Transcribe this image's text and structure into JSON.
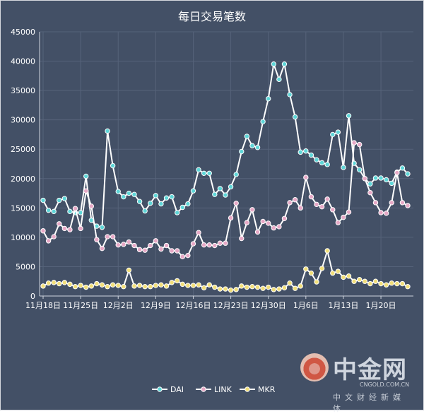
{
  "watermark": {
    "brand": "中金网",
    "url": "CNGOLD.COM.CN",
    "tagline": "中文财经新媒体"
  },
  "chart_data": {
    "type": "line",
    "title": "每日交易笔数",
    "xlabel": "",
    "ylabel": "",
    "ylim": [
      0,
      45000
    ],
    "y_ticks": [
      0,
      5000,
      10000,
      15000,
      20000,
      25000,
      30000,
      35000,
      40000,
      45000
    ],
    "x_tick_labels": [
      "11月18日",
      "11月25日",
      "12月2日",
      "12月9日",
      "12月16日",
      "12月23日",
      "12月30日",
      "1月6日",
      "1月13日",
      "1月20日"
    ],
    "x_tick_index": [
      0,
      7,
      14,
      21,
      28,
      35,
      42,
      49,
      56,
      63
    ],
    "grid": true,
    "legend_position": "bottom",
    "series": [
      {
        "name": "DAI",
        "color": "#5fd6d8",
        "values": [
          16300,
          14600,
          14400,
          16300,
          16600,
          14400,
          14200,
          14200,
          20400,
          12900,
          11900,
          11700,
          28100,
          22200,
          17800,
          16900,
          17500,
          17300,
          16100,
          14500,
          15800,
          17100,
          15700,
          16700,
          16900,
          14200,
          15100,
          15700,
          17900,
          21500,
          20900,
          20900,
          17300,
          18300,
          17200,
          18600,
          20700,
          24600,
          27200,
          25600,
          25300,
          29700,
          33600,
          39500,
          36900,
          39500,
          34300,
          30500,
          24500,
          24700,
          24000,
          23200,
          22700,
          22400,
          27500,
          27900,
          21900,
          30700,
          22600,
          21500,
          20000,
          19100,
          20100,
          20100,
          19800,
          19200,
          21100,
          21800,
          20800
        ]
      },
      {
        "name": "LINK",
        "color": "#e7a9c7",
        "values": [
          11100,
          9400,
          10100,
          12300,
          11500,
          11300,
          14900,
          11500,
          17900,
          15300,
          9600,
          8100,
          10100,
          10100,
          8700,
          8800,
          9200,
          8600,
          7900,
          7800,
          8600,
          9400,
          8000,
          8600,
          7700,
          7700,
          6700,
          6900,
          8900,
          10800,
          8700,
          8700,
          8600,
          9000,
          9000,
          13300,
          15800,
          9800,
          12500,
          14700,
          10900,
          12700,
          12400,
          11600,
          11800,
          13200,
          15900,
          16400,
          15000,
          20200,
          16900,
          15600,
          15200,
          16500,
          14700,
          12500,
          13400,
          14300,
          26100,
          25800,
          20000,
          17600,
          15900,
          14200,
          14100,
          15900,
          21000,
          15900,
          15400
        ]
      },
      {
        "name": "MKR",
        "color": "#f2df7a",
        "values": [
          1700,
          2200,
          2300,
          2100,
          2300,
          2000,
          1600,
          1800,
          1500,
          1700,
          2100,
          1900,
          1600,
          1900,
          1800,
          1600,
          4400,
          1700,
          1800,
          1600,
          1600,
          1800,
          1900,
          1700,
          2300,
          2600,
          2000,
          1800,
          1800,
          1900,
          1400,
          1900,
          1500,
          1200,
          1200,
          1000,
          1100,
          1700,
          1500,
          1600,
          1500,
          1300,
          1500,
          1100,
          1200,
          1400,
          2200,
          1300,
          1700,
          4600,
          3900,
          2400,
          4700,
          7700,
          3900,
          4200,
          3200,
          3400,
          2500,
          2800,
          2500,
          2100,
          2500,
          2100,
          1900,
          2200,
          2100,
          2100,
          1600
        ]
      }
    ]
  }
}
